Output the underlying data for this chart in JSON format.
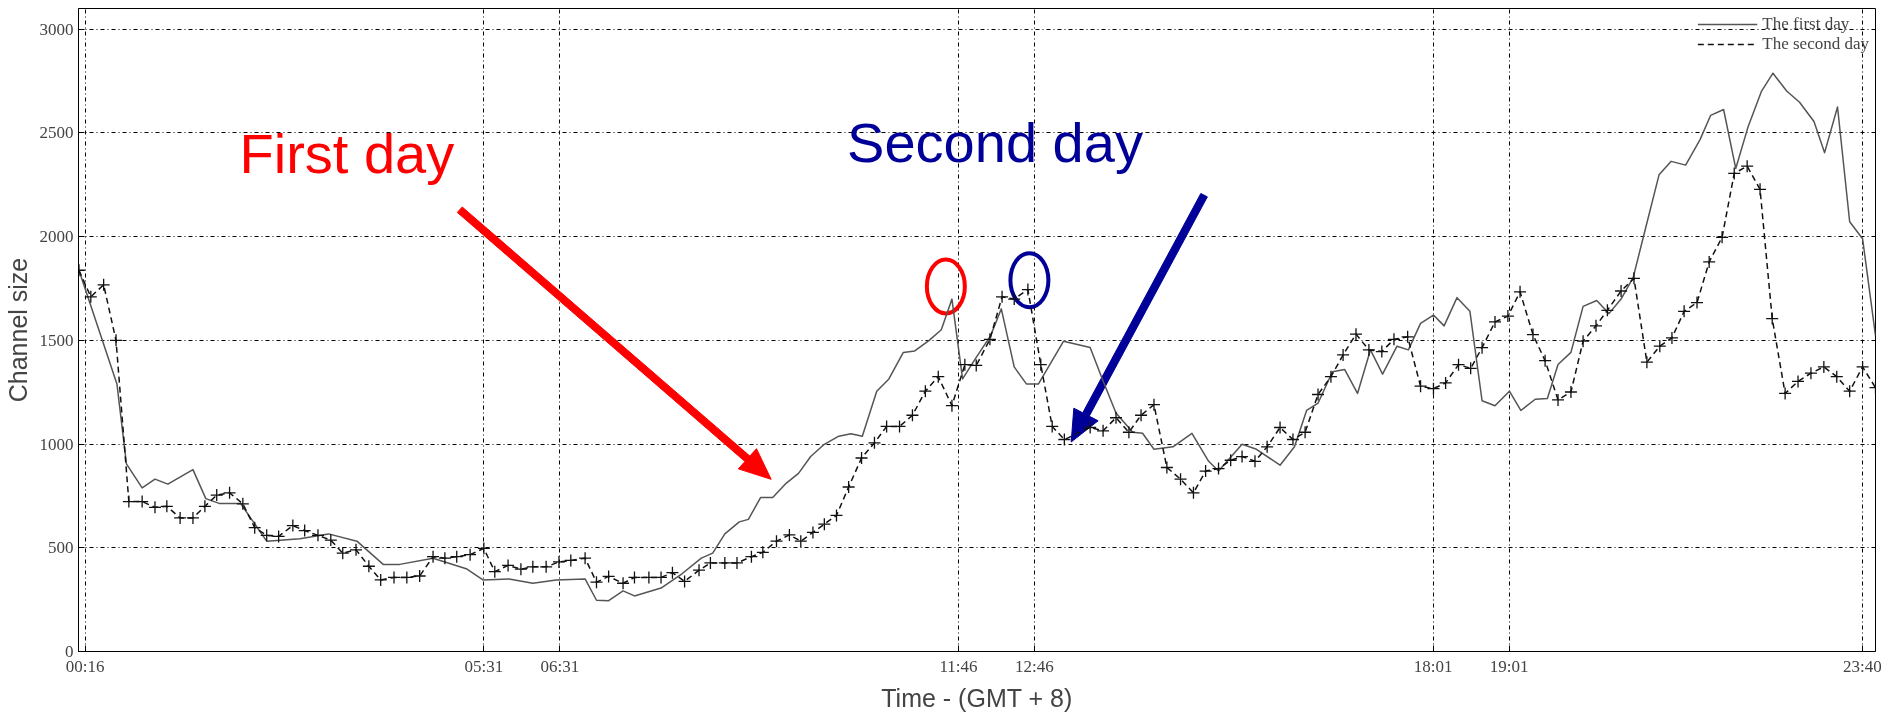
{
  "chart_data": {
    "type": "line",
    "xlabel": "Time - (GMT + 8)",
    "ylabel": "Channel size",
    "xlim": [
      0.18,
      23.84
    ],
    "ylim": [
      0,
      3100
    ],
    "xticks": [
      {
        "value": 0.2667,
        "label": "00:16"
      },
      {
        "value": 5.5167,
        "label": "05:31"
      },
      {
        "value": 6.5167,
        "label": "06:31"
      },
      {
        "value": 11.7667,
        "label": "11:46"
      },
      {
        "value": 12.7667,
        "label": "12:46"
      },
      {
        "value": 18.0167,
        "label": "18:01"
      },
      {
        "value": 19.0167,
        "label": "19:01"
      },
      {
        "value": 23.6667,
        "label": "23:40"
      }
    ],
    "yticks": [
      0,
      500,
      1000,
      1500,
      2000,
      2500,
      3000
    ],
    "grid": true,
    "legend": "top right",
    "annotations": [
      "First day",
      "Second day"
    ],
    "series": [
      {
        "name": "The first day",
        "color": "#555555",
        "line_style": "solid",
        "marker": "none",
        "x": [
          0.186,
          0.686,
          0.811,
          1.018,
          1.187,
          1.356,
          1.687,
          1.856,
          2.032,
          2.313,
          2.658,
          3.096,
          3.471,
          3.846,
          4.191,
          4.41,
          4.848,
          5.285,
          5.505,
          5.849,
          6.162,
          6.47,
          6.85,
          7.0,
          7.16,
          7.35,
          7.5,
          7.85,
          8.13,
          8.38,
          8.53,
          8.69,
          8.88,
          9.0,
          9.16,
          9.32,
          9.5,
          9.66,
          9.82,
          10.0,
          10.19,
          10.35,
          10.5,
          10.69,
          10.85,
          11.04,
          11.19,
          11.38,
          11.54,
          11.68,
          11.82,
          12.0,
          12.19,
          12.33,
          12.5,
          12.66,
          12.82,
          13.15,
          13.5,
          13.66,
          13.84,
          14.06,
          14.19,
          14.34,
          14.59,
          14.84,
          15.06,
          15.19,
          15.5,
          15.69,
          16.0,
          16.19,
          16.35,
          16.5,
          16.69,
          16.85,
          17.02,
          17.19,
          17.35,
          17.54,
          17.69,
          17.85,
          18.02,
          18.16,
          18.33,
          18.5,
          18.66,
          18.83,
          19.02,
          19.17,
          19.36,
          19.52,
          19.66,
          19.83,
          19.99,
          20.17,
          20.33,
          20.49,
          20.65,
          20.81,
          20.99,
          21.15,
          21.34,
          21.53,
          21.67,
          21.84,
          22.0,
          22.16,
          22.34,
          22.49,
          22.67,
          22.84,
          23.03,
          23.17,
          23.34,
          23.5,
          23.67,
          23.84
        ],
        "values": [
          1838,
          1290,
          905,
          789,
          831,
          807,
          877,
          737,
          714,
          714,
          532,
          544,
          567,
          532,
          420,
          420,
          450,
          399,
          345,
          350,
          329,
          345,
          350,
          247,
          245,
          292,
          268,
          306,
          376,
          450,
          474,
          567,
          625,
          637,
          742,
          742,
          812,
          859,
          940,
          999,
          1038,
          1050,
          1038,
          1255,
          1314,
          1442,
          1449,
          1500,
          1551,
          1699,
          1314,
          1418,
          1523,
          1652,
          1372,
          1290,
          1290,
          1496,
          1466,
          1314,
          1150,
          1057,
          1052,
          975,
          987,
          1052,
          917,
          870,
          999,
          975,
          898,
          987,
          1162,
          1197,
          1349,
          1360,
          1244,
          1454,
          1337,
          1472,
          1454,
          1582,
          1622,
          1570,
          1706,
          1640,
          1209,
          1185,
          1255,
          1162,
          1216,
          1220,
          1384,
          1442,
          1664,
          1692,
          1629,
          1699,
          1804,
          2037,
          2298,
          2363,
          2345,
          2468,
          2585,
          2613,
          2329,
          2527,
          2702,
          2788,
          2702,
          2648,
          2555,
          2405,
          2625,
          2072,
          1990,
          1523
        ]
      },
      {
        "name": "The second day",
        "color": "#111111",
        "line_style": "dashed",
        "marker": "cross",
        "x": [
          0.186,
          0.342,
          0.511,
          0.674,
          0.843,
          1.018,
          1.187,
          1.343,
          1.518,
          1.687,
          1.844,
          2.0,
          2.169,
          2.344,
          2.5,
          2.658,
          2.815,
          3.002,
          3.158,
          3.333,
          3.502,
          3.659,
          3.834,
          4.003,
          4.159,
          4.334,
          4.503,
          4.672,
          4.848,
          5.004,
          5.16,
          5.336,
          5.517,
          5.661,
          5.836,
          6.005,
          6.162,
          6.337,
          6.506,
          6.662,
          6.85,
          7.0,
          7.16,
          7.35,
          7.5,
          7.69,
          7.85,
          8.0,
          8.16,
          8.35,
          8.5,
          8.69,
          8.85,
          9.04,
          9.19,
          9.37,
          9.54,
          9.69,
          9.85,
          10.0,
          10.16,
          10.32,
          10.49,
          10.66,
          10.82,
          10.99,
          11.16,
          11.33,
          11.5,
          11.68,
          11.85,
          12.0,
          12.18,
          12.34,
          12.5,
          12.68,
          12.85,
          13.0,
          13.16,
          13.5,
          13.67,
          13.84,
          14.01,
          14.17,
          14.34,
          14.51,
          14.69,
          14.86,
          15.02,
          15.19,
          15.35,
          15.5,
          15.67,
          15.83,
          16.0,
          16.17,
          16.33,
          16.5,
          16.67,
          16.83,
          17.0,
          17.17,
          17.34,
          17.5,
          17.68,
          17.85,
          18.02,
          18.18,
          18.35,
          18.51,
          18.66,
          18.83,
          19.0,
          19.16,
          19.33,
          19.49,
          19.66,
          19.83,
          19.99,
          20.16,
          20.31,
          20.49,
          20.66,
          20.83,
          21.0,
          21.16,
          21.32,
          21.49,
          21.65,
          21.82,
          21.98,
          22.15,
          22.32,
          22.48,
          22.65,
          22.82,
          22.99,
          23.16,
          23.33,
          23.5,
          23.67,
          23.84
        ],
        "values": [
          1838,
          1710,
          1768,
          1500,
          723,
          723,
          695,
          700,
          644,
          644,
          700,
          754,
          765,
          712,
          597,
          560,
          555,
          607,
          583,
          560,
          537,
          474,
          490,
          411,
          345,
          357,
          357,
          364,
          457,
          450,
          457,
          467,
          497,
          385,
          415,
          397,
          408,
          408,
          432,
          439,
          450,
          334,
          362,
          329,
          357,
          357,
          357,
          380,
          338,
          392,
          427,
          427,
          427,
          457,
          478,
          532,
          562,
          532,
          574,
          614,
          656,
          793,
          933,
          1006,
          1085,
          1085,
          1139,
          1255,
          1325,
          1185,
          1383,
          1379,
          1505,
          1710,
          1699,
          1745,
          1383,
          1085,
          1022,
          1080,
          1064,
          1127,
          1057,
          1139,
          1190,
          887,
          831,
          765,
          870,
          882,
          922,
          940,
          917,
          987,
          1080,
          1022,
          1057,
          1239,
          1325,
          1430,
          1530,
          1454,
          1446,
          1505,
          1517,
          1279,
          1267,
          1295,
          1383,
          1365,
          1465,
          1589,
          1617,
          1734,
          1528,
          1402,
          1213,
          1251,
          1496,
          1570,
          1645,
          1738,
          1799,
          1395,
          1472,
          1512,
          1640,
          1682,
          1878,
          1997,
          2305,
          2340,
          2228,
          1605,
          1244,
          1302,
          1342,
          1372,
          1325,
          1255,
          1372,
          1272
        ]
      }
    ]
  }
}
